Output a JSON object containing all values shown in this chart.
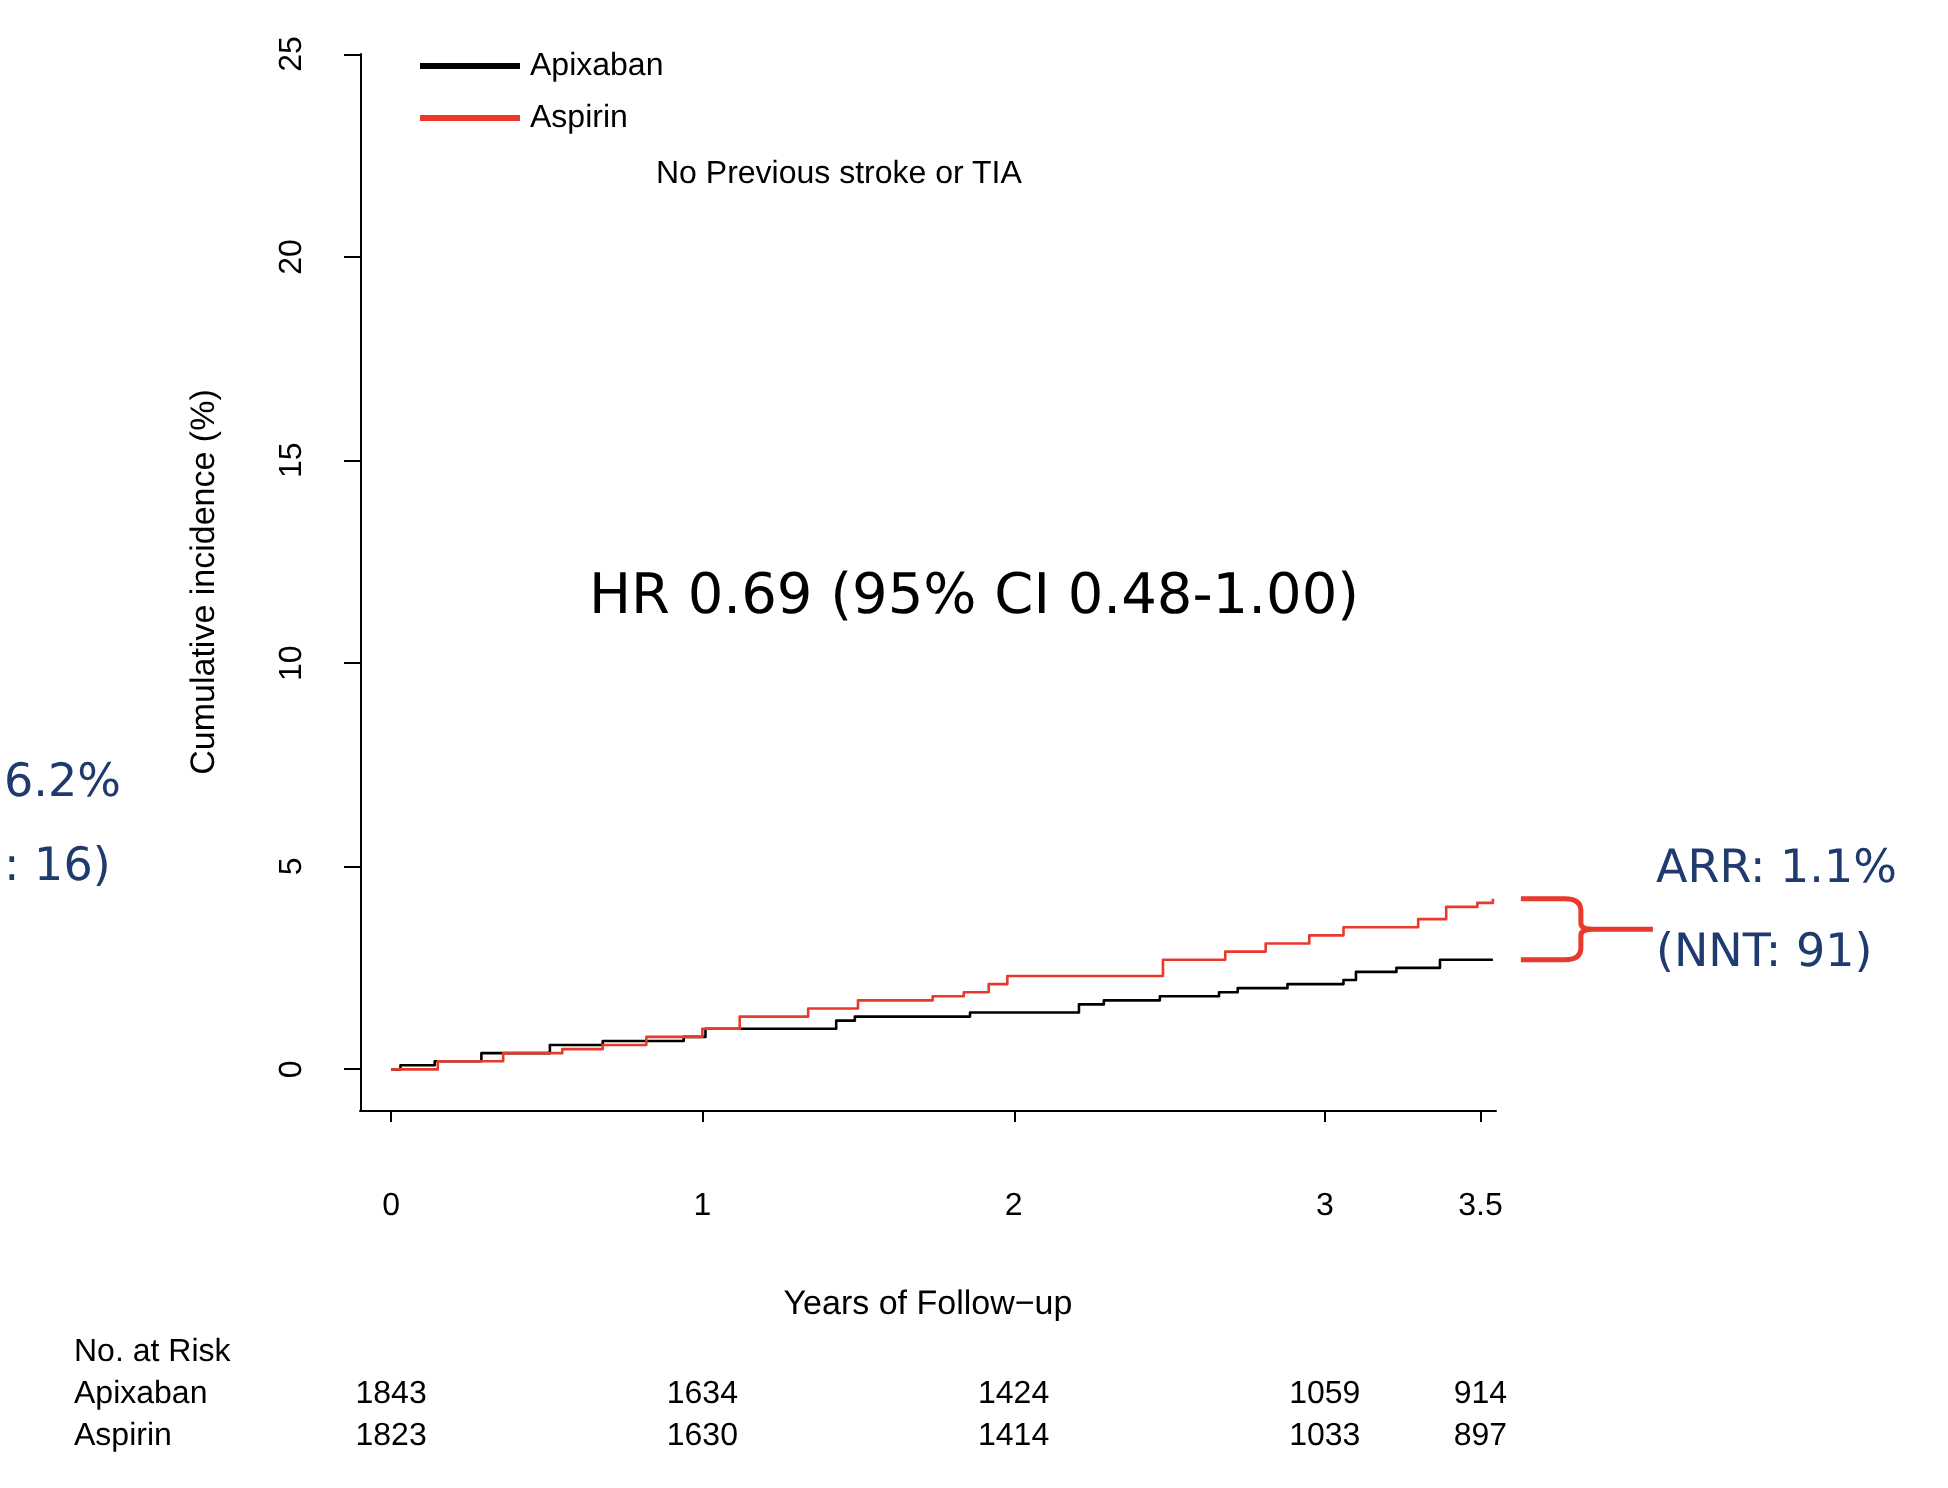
{
  "chart_data": {
    "type": "step",
    "xlabel": "Years of Follow−up",
    "ylabel": "Cumulative incidence (%)",
    "xlim": [
      -0.1,
      3.55
    ],
    "xticks": [
      0,
      1,
      2,
      3,
      3.5
    ],
    "ylim": [
      -1,
      25
    ],
    "yticks": [
      0,
      5,
      10,
      15,
      20,
      25
    ],
    "grid": false,
    "legend": "top left",
    "line_style": "solid",
    "marker": "none",
    "series": [
      {
        "name": "Apixaban",
        "color": "#000000",
        "x": [
          0,
          0.03,
          0.14,
          0.29,
          0.51,
          0.68,
          0.94,
          1.01,
          1.14,
          1.43,
          1.49,
          1.86,
          2.16,
          2.21,
          2.29,
          2.47,
          2.66,
          2.72,
          2.88,
          3.06,
          3.1,
          3.23,
          3.37,
          3.54
        ],
        "values": [
          0,
          0.1,
          0.2,
          0.4,
          0.6,
          0.7,
          0.8,
          1.0,
          1.0,
          1.2,
          1.3,
          1.4,
          1.4,
          1.6,
          1.7,
          1.8,
          1.9,
          2.0,
          2.1,
          2.2,
          2.4,
          2.5,
          2.7,
          2.7
        ]
      },
      {
        "name": "Aspirin",
        "color": "#e8392b",
        "x": [
          0,
          0.15,
          0.36,
          0.55,
          0.68,
          0.82,
          1.0,
          1.12,
          1.34,
          1.5,
          1.74,
          1.84,
          1.92,
          1.98,
          2.31,
          2.48,
          2.68,
          2.81,
          2.95,
          3.06,
          3.3,
          3.39,
          3.49,
          3.54
        ],
        "values": [
          0,
          0.2,
          0.4,
          0.5,
          0.6,
          0.8,
          1.0,
          1.3,
          1.5,
          1.7,
          1.8,
          1.9,
          2.1,
          2.3,
          2.3,
          2.7,
          2.9,
          3.1,
          3.3,
          3.5,
          3.7,
          4.0,
          4.1,
          4.2
        ]
      }
    ],
    "annotations": [
      "No Previous stroke or TIA",
      "HR 0.69 (95% CI 0.48-1.00)",
      "ARR: 1.1%\n(NNT: 91)",
      "6.2%\n: 16)",
      "No. at Risk",
      "Apixaban",
      "1843",
      "1634",
      "1424",
      "1059",
      "914",
      "Aspirin",
      "1823",
      "1630",
      "1414",
      "1033",
      "897"
    ]
  }
}
